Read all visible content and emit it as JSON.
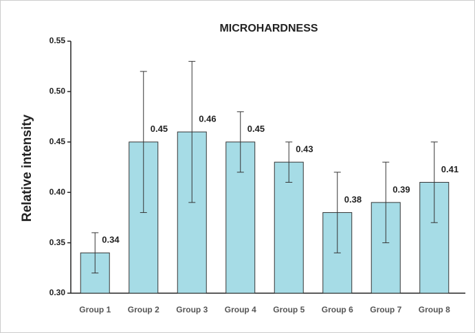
{
  "chart_data": {
    "type": "bar",
    "title": "MICROHARDNESS",
    "y_label": "Relative intensity",
    "categories": [
      "Group 1",
      "Group 2",
      "Group 3",
      "Group 4",
      "Group 5",
      "Group 6",
      "Group 7",
      "Group 8"
    ],
    "values": [
      0.34,
      0.45,
      0.46,
      0.45,
      0.43,
      0.38,
      0.39,
      0.41
    ],
    "errors": [
      0.02,
      0.07,
      0.07,
      0.03,
      0.02,
      0.04,
      0.04,
      0.04
    ],
    "color": "#a6dce6",
    "ylim": [
      0.3,
      0.55
    ],
    "yticks": [
      {
        "value": 0.3,
        "label": "0.30"
      },
      0.35,
      {
        "value": 0.4,
        "label": "0.40"
      },
      0.45,
      {
        "value": 0.5,
        "label": "0.50"
      },
      0.55
    ]
  }
}
